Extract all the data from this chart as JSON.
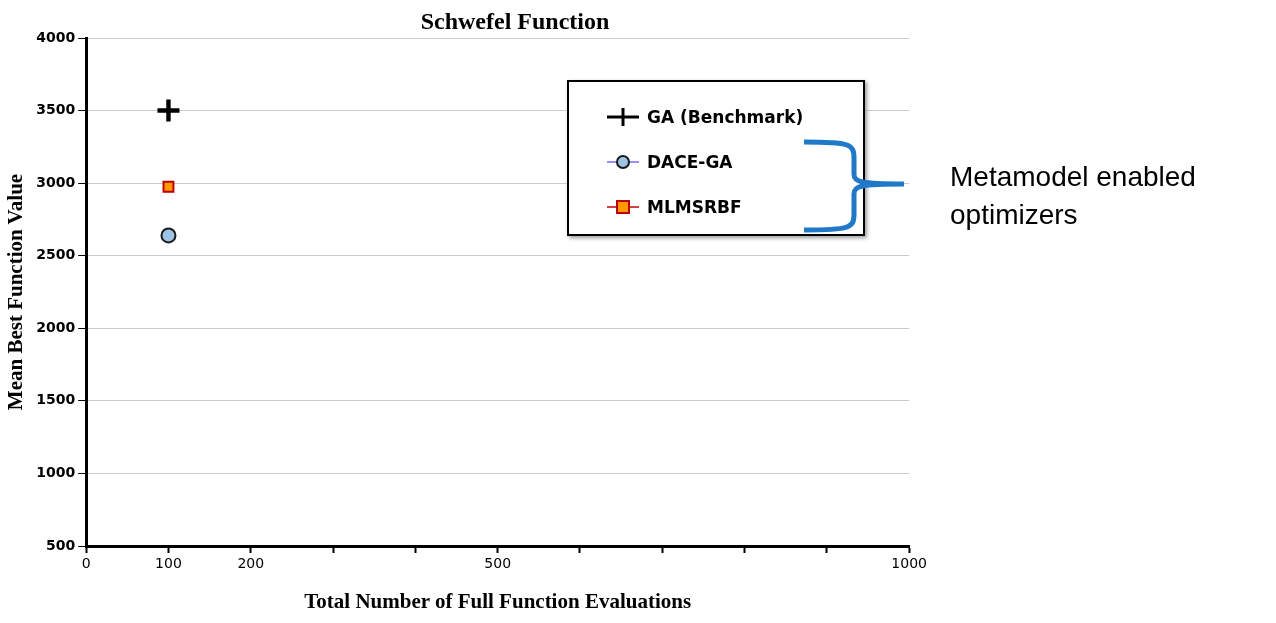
{
  "chart_data": {
    "type": "scatter",
    "title": "Schwefel Function",
    "xlabel": "Total Number of Full Function Evaluations",
    "ylabel": "Mean Best Function Value",
    "xlim": [
      0,
      1000
    ],
    "xticks": [
      0,
      100,
      200,
      {
        "value": 300,
        "label": null
      },
      {
        "value": 400,
        "label": null
      },
      500,
      {
        "value": 600,
        "label": null
      },
      {
        "value": 700,
        "label": null
      },
      {
        "value": 800,
        "label": null
      },
      {
        "value": 900,
        "label": null
      },
      1000
    ],
    "x": [
      100
    ],
    "ylim": [
      500,
      4000
    ],
    "yticks": [
      500,
      1000,
      1500,
      2000,
      2500,
      3000,
      3500,
      4000
    ],
    "grid": "y",
    "legend": "top right",
    "series": [
      {
        "name": "GA (Benchmark)",
        "color": "#000000",
        "marker": "cross",
        "values": [
          3500
        ]
      },
      {
        "name": "DACE-GA",
        "color": "#9dc3e6",
        "marker": "circle",
        "values": [
          2640
        ]
      },
      {
        "name": "MLMSRBF",
        "color": "#ff9900",
        "marker": "square",
        "values": [
          2975
        ]
      }
    ],
    "annotations": [
      "Metamodel enabled optimizers"
    ]
  }
}
